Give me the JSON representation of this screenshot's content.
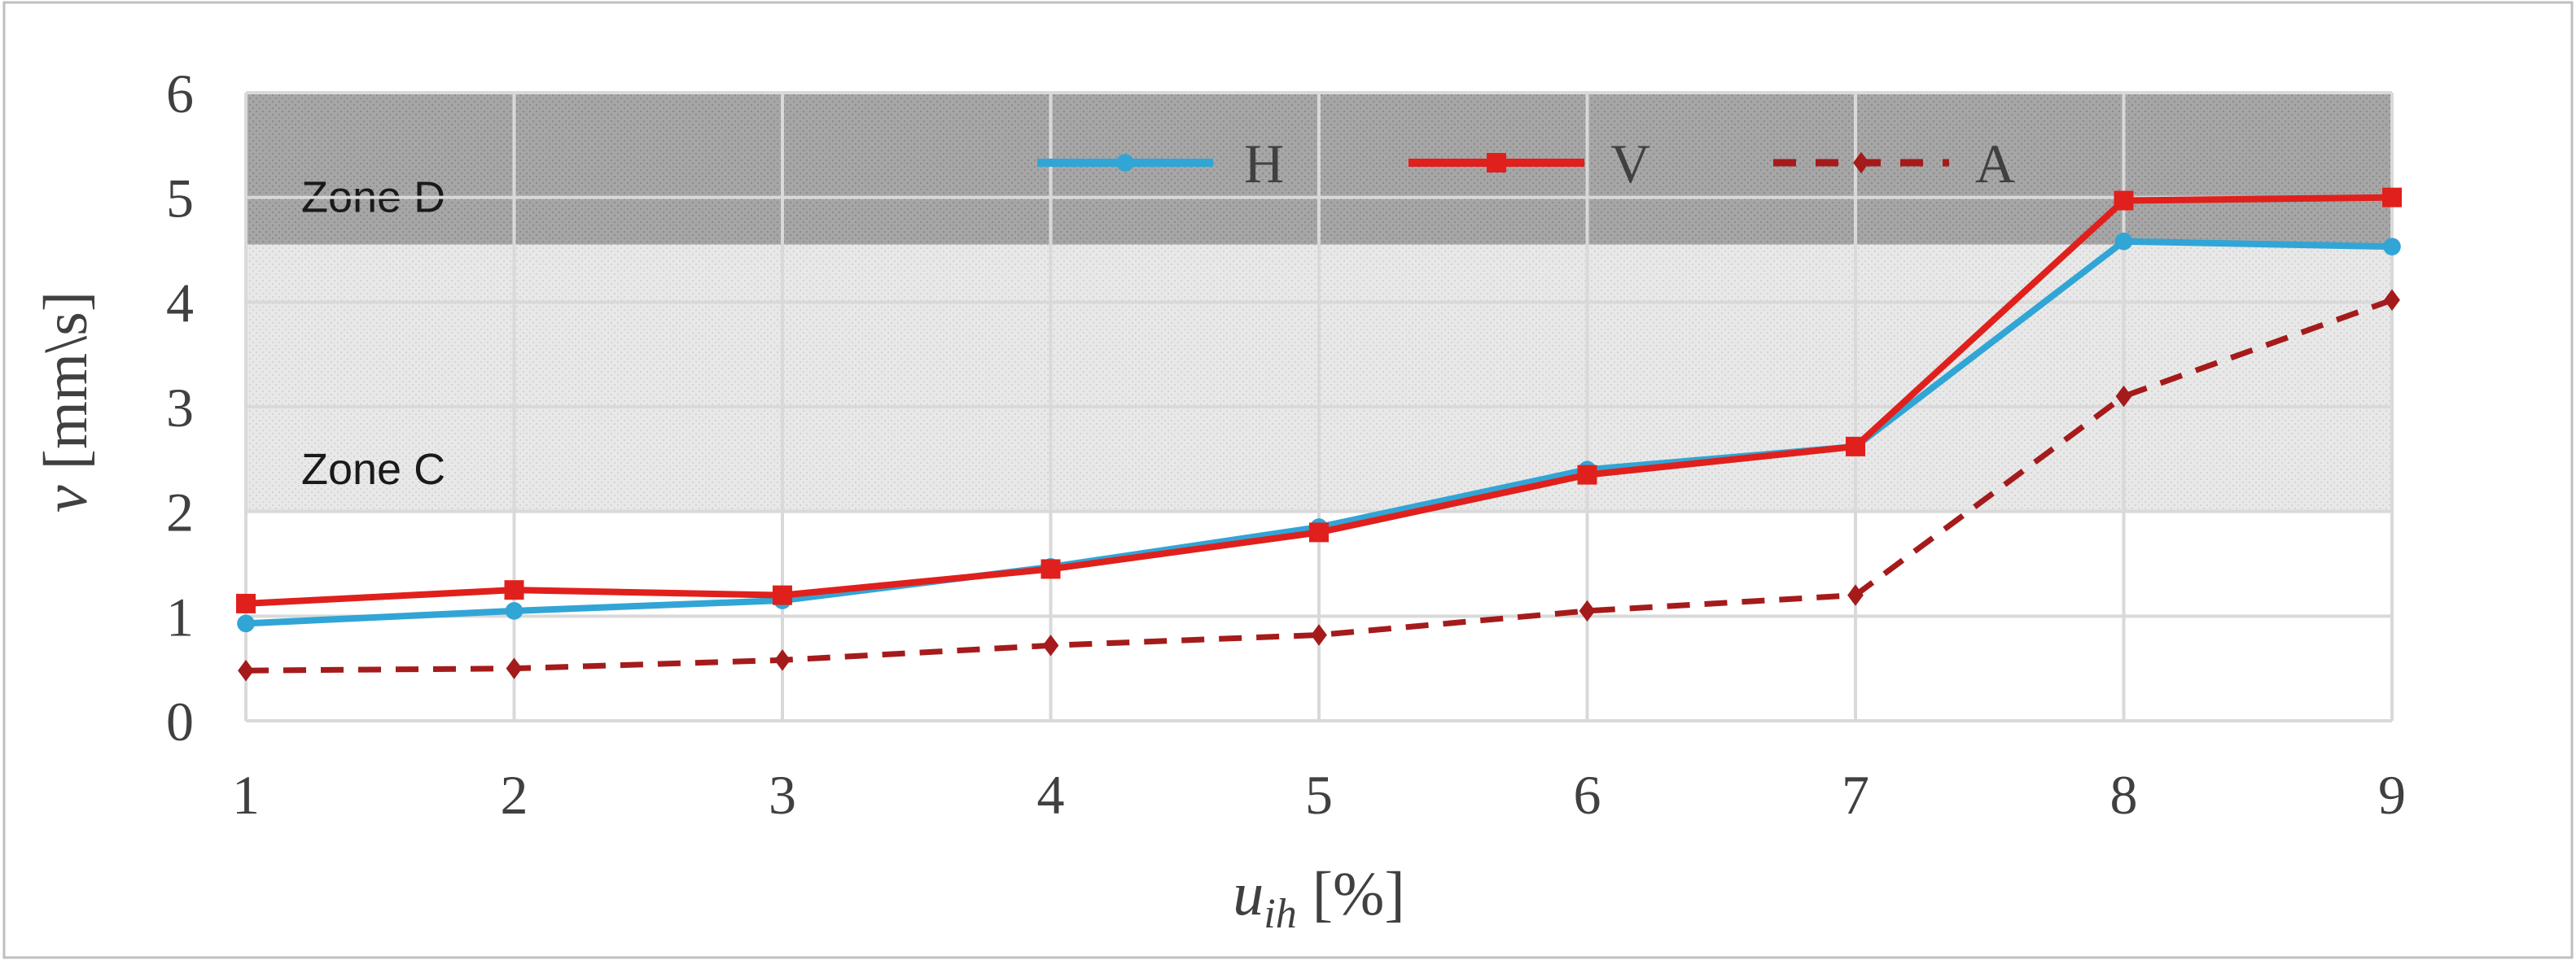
{
  "chart_data": {
    "type": "line",
    "x": [
      1,
      2,
      3,
      4,
      5,
      6,
      7,
      8,
      9
    ],
    "xlim": [
      1,
      9
    ],
    "ylim": [
      0,
      6
    ],
    "xticks": [
      1,
      2,
      3,
      4,
      5,
      6,
      7,
      8,
      9
    ],
    "yticks": [
      0,
      1,
      2,
      3,
      4,
      5,
      6
    ],
    "xlabel_main": "u",
    "xlabel_sub": "ih",
    "xlabel_unit": " [%]",
    "ylabel_main": "v",
    "ylabel_unit": " [mm\\s]",
    "grid": true,
    "legend_position": "top-right",
    "zones": [
      {
        "label": "Zone D",
        "y_from": 4.55,
        "y_to": 6.0,
        "color": "#a6a6a6"
      },
      {
        "label": "Zone C",
        "y_from": 2.0,
        "y_to": 4.55,
        "color": "#e6e6e6"
      }
    ],
    "series": [
      {
        "name": "H",
        "color": "#31a5d6",
        "marker": "circle",
        "dash": "solid",
        "values": [
          0.93,
          1.05,
          1.15,
          1.47,
          1.85,
          2.4,
          2.62,
          4.58,
          4.53
        ]
      },
      {
        "name": "V",
        "color": "#e0201c",
        "marker": "square",
        "dash": "solid",
        "values": [
          1.12,
          1.25,
          1.2,
          1.45,
          1.8,
          2.35,
          2.62,
          4.97,
          5.0
        ]
      },
      {
        "name": "A",
        "color": "#a51b1b",
        "marker": "diamond",
        "dash": "dashed",
        "values": [
          0.48,
          0.5,
          0.58,
          0.72,
          0.82,
          1.05,
          1.2,
          3.1,
          4.02
        ]
      }
    ]
  }
}
